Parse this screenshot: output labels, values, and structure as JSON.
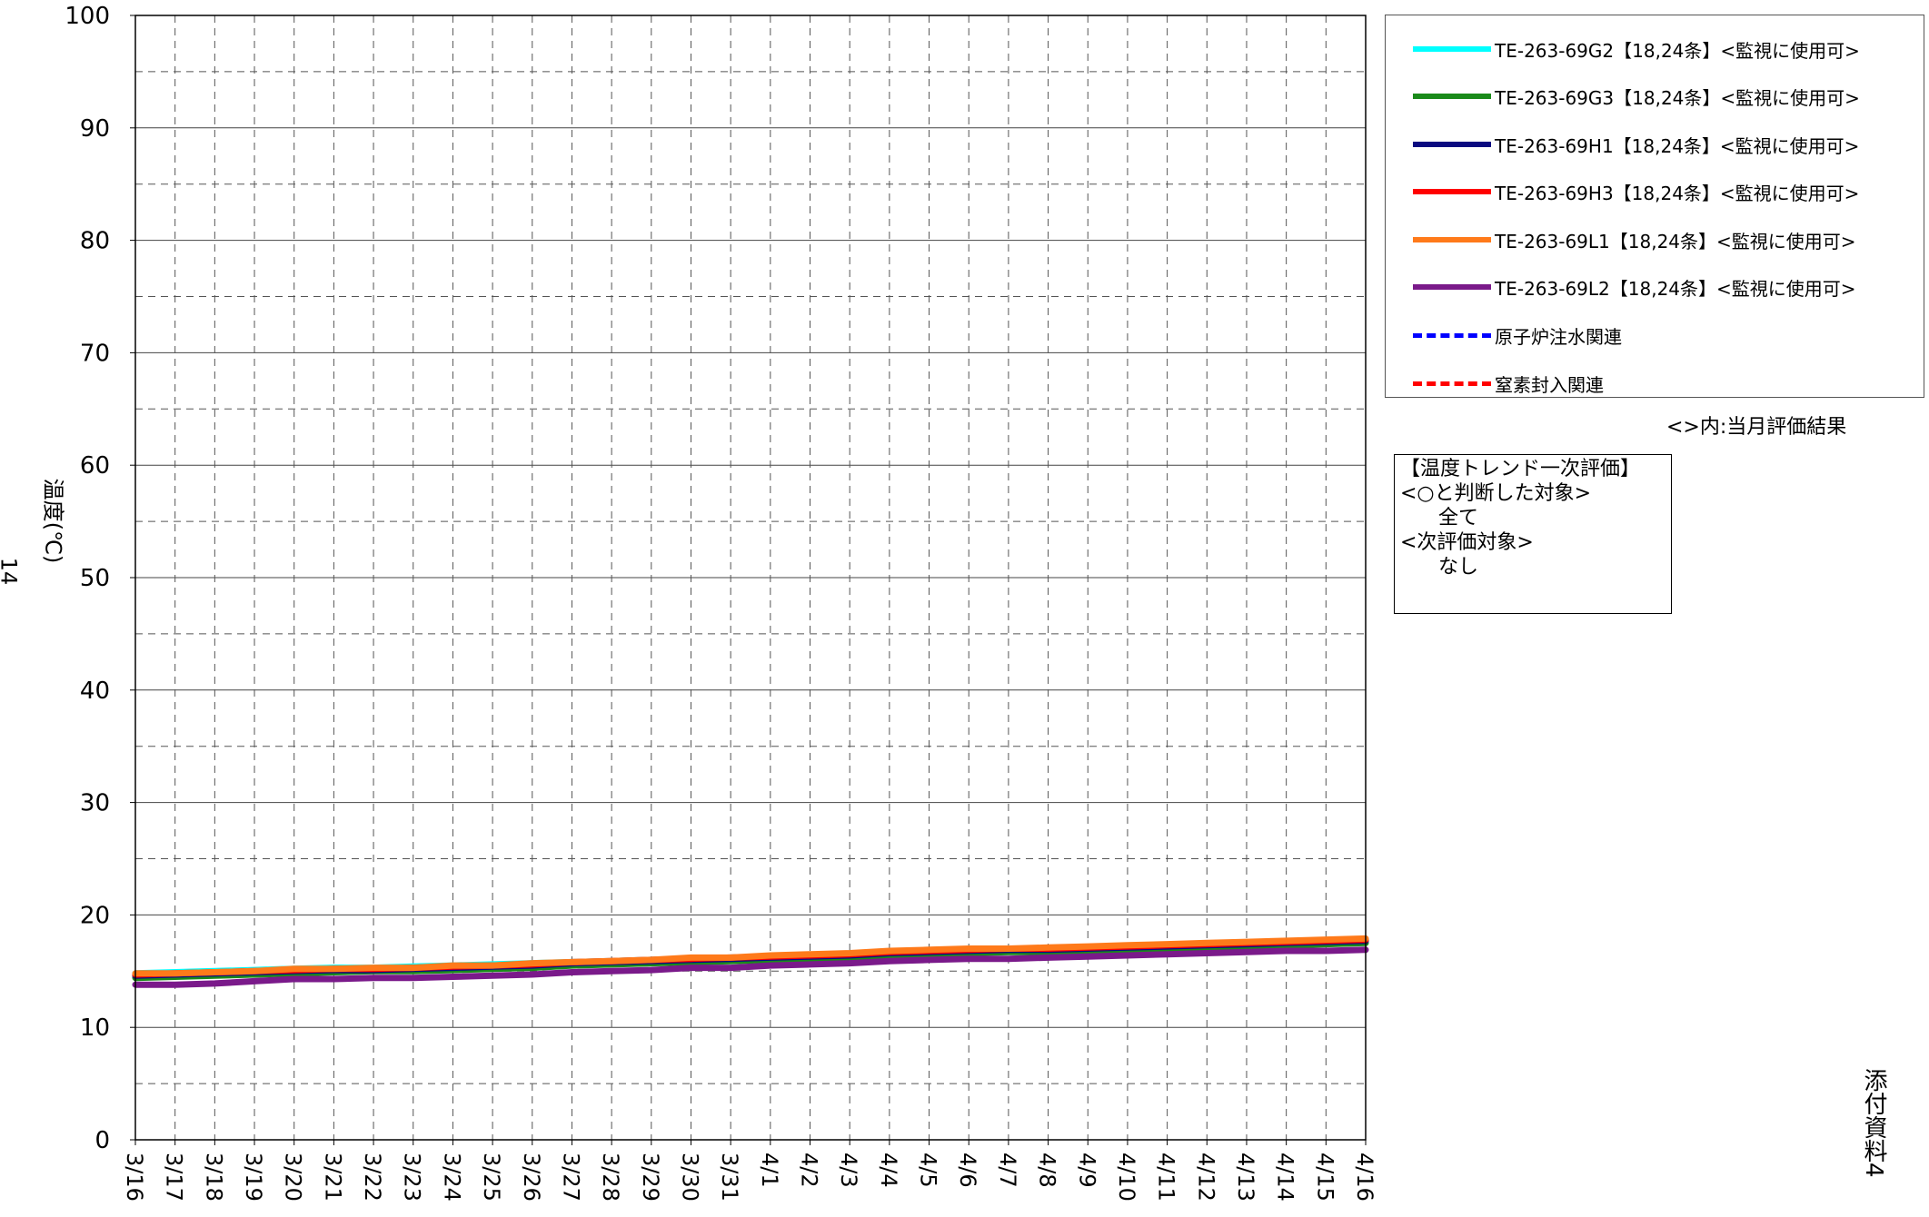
{
  "page_number": "14",
  "side_note": "添付資料4",
  "chart_data": {
    "type": "line",
    "ylabel": "温度(℃)",
    "ylim": [
      0,
      100
    ],
    "yticks": [
      0,
      10,
      20,
      30,
      40,
      50,
      60,
      70,
      80,
      90,
      100
    ],
    "x_tick_labels": [
      "3/16",
      "3/17",
      "3/18",
      "3/19",
      "3/20",
      "3/21",
      "3/22",
      "3/23",
      "3/24",
      "3/25",
      "3/26",
      "3/27",
      "3/28",
      "3/29",
      "3/30",
      "3/31",
      "4/1",
      "4/2",
      "4/3",
      "4/4",
      "4/5",
      "4/6",
      "4/7",
      "4/8",
      "4/9",
      "4/10",
      "4/11",
      "4/12",
      "4/13",
      "4/14",
      "4/15",
      "4/16"
    ],
    "grid": true,
    "legend_position": "top-right",
    "series": [
      {
        "name": "TE-263-69G2【18,24条】<監視に使用可>",
        "color": "#00ffff",
        "values": [
          14.8,
          14.9,
          15.0,
          15.1,
          15.2,
          15.3,
          15.3,
          15.4,
          15.5,
          15.6,
          15.7,
          15.8,
          15.9,
          16.0,
          16.1,
          16.2,
          16.3,
          16.4,
          16.5,
          16.7,
          16.8,
          16.9,
          17.0,
          17.0,
          17.1,
          17.2,
          17.3,
          17.4,
          17.5,
          17.6,
          17.7,
          17.8
        ]
      },
      {
        "name": "TE-263-69G3【18,24条】<監視に使用可>",
        "color": "#1a8a1a",
        "values": [
          14.4,
          14.5,
          14.6,
          14.7,
          14.8,
          14.9,
          15.0,
          15.0,
          15.1,
          15.2,
          15.3,
          15.5,
          15.6,
          15.7,
          15.8,
          15.9,
          16.0,
          16.1,
          16.2,
          16.4,
          16.5,
          16.6,
          16.7,
          16.7,
          16.8,
          16.9,
          17.0,
          17.1,
          17.2,
          17.3,
          17.4,
          17.5
        ]
      },
      {
        "name": "TE-263-69H1【18,24条】<監視に使用可>",
        "color": "#0a0a80",
        "values": [
          14.6,
          14.7,
          14.8,
          14.9,
          15.0,
          15.1,
          15.1,
          15.2,
          15.3,
          15.4,
          15.5,
          15.7,
          15.8,
          15.9,
          16.0,
          16.1,
          16.2,
          16.3,
          16.4,
          16.6,
          16.7,
          16.8,
          16.9,
          16.9,
          17.0,
          17.1,
          17.2,
          17.3,
          17.4,
          17.5,
          17.6,
          17.7
        ]
      },
      {
        "name": "TE-263-69H3【18,24条】<監視に使用可>",
        "color": "#ff0000",
        "values": [
          14.7,
          14.8,
          14.9,
          15.0,
          15.1,
          15.2,
          15.2,
          15.3,
          15.4,
          15.5,
          15.6,
          15.8,
          15.9,
          16.0,
          16.1,
          16.2,
          16.3,
          16.4,
          16.5,
          16.7,
          16.8,
          16.9,
          17.0,
          17.0,
          17.1,
          17.2,
          17.3,
          17.4,
          17.5,
          17.6,
          17.7,
          17.8
        ]
      },
      {
        "name": "TE-263-69L1【18,24条】<監視に使用可>",
        "color": "#ff7a1a",
        "values": [
          14.8,
          14.8,
          14.9,
          15.0,
          15.2,
          15.2,
          15.3,
          15.3,
          15.5,
          15.5,
          15.7,
          15.8,
          15.9,
          16.0,
          16.2,
          16.2,
          16.4,
          16.5,
          16.6,
          16.8,
          16.9,
          17.0,
          17.0,
          17.1,
          17.2,
          17.3,
          17.4,
          17.5,
          17.6,
          17.7,
          17.8,
          17.9
        ]
      },
      {
        "name": "TE-263-69L2【18,24条】<監視に使用可>",
        "color": "#7a1a8a",
        "values": [
          13.8,
          13.8,
          13.9,
          14.1,
          14.3,
          14.3,
          14.4,
          14.4,
          14.5,
          14.6,
          14.7,
          14.9,
          15.0,
          15.1,
          15.3,
          15.3,
          15.5,
          15.6,
          15.7,
          15.9,
          16.0,
          16.1,
          16.1,
          16.2,
          16.3,
          16.4,
          16.5,
          16.6,
          16.7,
          16.8,
          16.8,
          16.9
        ]
      }
    ],
    "reference_lines": [
      {
        "name": "原子炉注水関連",
        "color": "#0000ff",
        "style": "dashed"
      },
      {
        "name": "窒素封入関連",
        "color": "#ff0000",
        "style": "dashed"
      }
    ]
  },
  "legend_note": "<>内:当月評価結果",
  "evaluation_box": {
    "lines": [
      "【温度トレンド一次評価】",
      "<○と判断した対象>",
      "      全て",
      "<次評価対象>",
      "      なし"
    ]
  }
}
